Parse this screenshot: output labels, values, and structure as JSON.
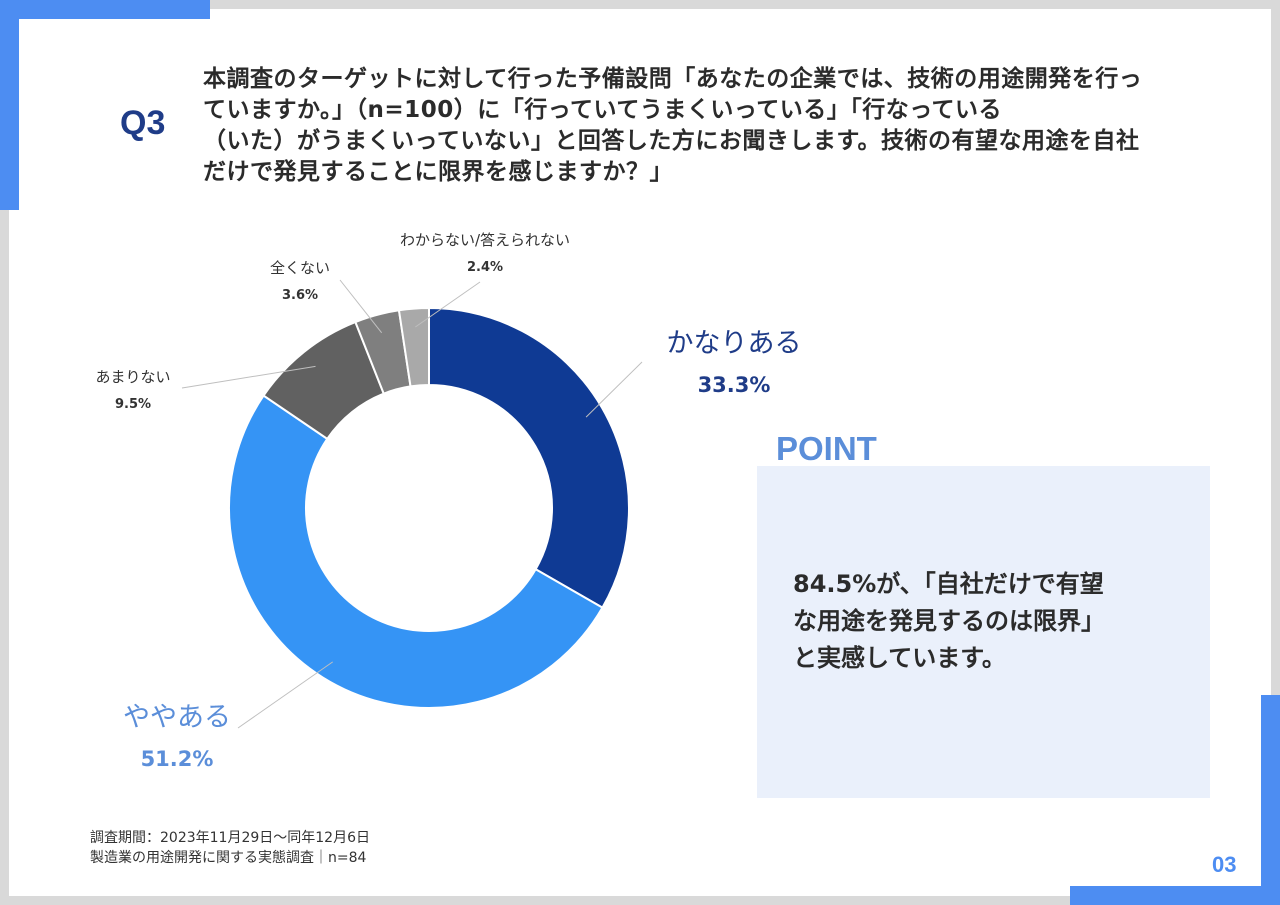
{
  "question": {
    "number": "Q3",
    "text_lines": [
      "本調査のターゲットに対して行った予備設問「あなたの企業では、技術の用途開発を行っ",
      "ていますか。」（n=100）に「行っていてうまくいっている」「行なっている",
      "（いた）がうまくいっていない」と回答した方にお聞きします。技術の有望な用途を自社",
      "だけで発見することに限界を感じますか？」"
    ]
  },
  "chart_data": {
    "type": "pie",
    "donut": true,
    "unit": "%",
    "slices": [
      {
        "label": "かなりある",
        "value": 33.3,
        "value_label": "33.3%",
        "color": "#0f3a94"
      },
      {
        "label": "ややある",
        "value": 51.2,
        "value_label": "51.2%",
        "color": "#3594f5"
      },
      {
        "label": "あまりない",
        "value": 9.5,
        "value_label": "9.5%",
        "color": "#616161"
      },
      {
        "label": "全くない",
        "value": 3.6,
        "value_label": "3.6%",
        "color": "#7f7f7f"
      },
      {
        "label": "わからない/答えられない",
        "value": 2.4,
        "value_label": "2.4%",
        "color": "#a9a9a9"
      }
    ]
  },
  "point": {
    "title": "POINT",
    "text_lines": [
      "84.5%が、「自社だけで有望",
      "な用途を発見するのは限界」",
      "と実感しています。"
    ]
  },
  "footer": {
    "period": "調査期間：2023年11月29日～同年12月6日",
    "survey": "製造業の用途開発に関する実態調査｜n=84"
  },
  "page_number": "03"
}
